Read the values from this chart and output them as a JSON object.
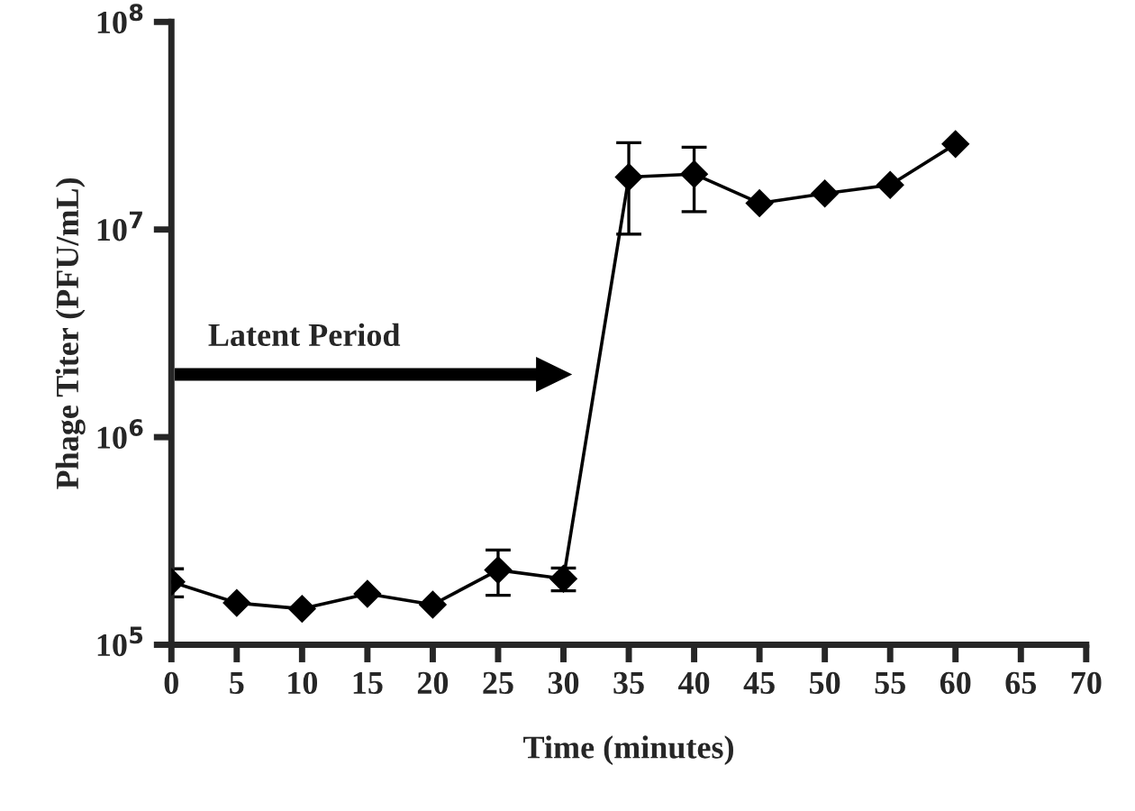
{
  "chart_data": {
    "type": "line",
    "xlabel": "Time (minutes)",
    "ylabel": "Phage Titer (PFU/mL)",
    "x": [
      0,
      5,
      10,
      15,
      20,
      25,
      30,
      35,
      40,
      45,
      50,
      55,
      60
    ],
    "series": [
      {
        "color": "#000000",
        "values": [
          201000,
          159000,
          149000,
          176000,
          156000,
          229000,
          208000,
          17900000,
          18500000,
          13400000,
          14900000,
          16400000,
          25800000
        ],
        "errors": [
          [
            170000,
            232000
          ],
          null,
          null,
          null,
          null,
          [
            173000,
            286000
          ],
          [
            182000,
            234000
          ],
          [
            9500000,
            26200000
          ],
          [
            12200000,
            24900000
          ],
          null,
          null,
          null,
          null
        ]
      }
    ],
    "xlim": [
      0,
      70
    ],
    "xticks": [
      0,
      5,
      10,
      15,
      20,
      25,
      30,
      35,
      40,
      45,
      50,
      55,
      60,
      65,
      70
    ],
    "ylim": [
      100000,
      100000000
    ],
    "log": "y",
    "yticks": [
      {
        "value": 100000,
        "label": "10$^{5}$"
      },
      {
        "value": 1000000,
        "label": "10$^{6}$"
      },
      {
        "value": 10000000,
        "label": "10$^{7}$"
      },
      {
        "value": 100000000,
        "label": "10$^{8}$"
      }
    ],
    "marker": "diamond",
    "line_style": "solid",
    "grid": false,
    "annotations": [
      "Latent Period"
    ]
  }
}
